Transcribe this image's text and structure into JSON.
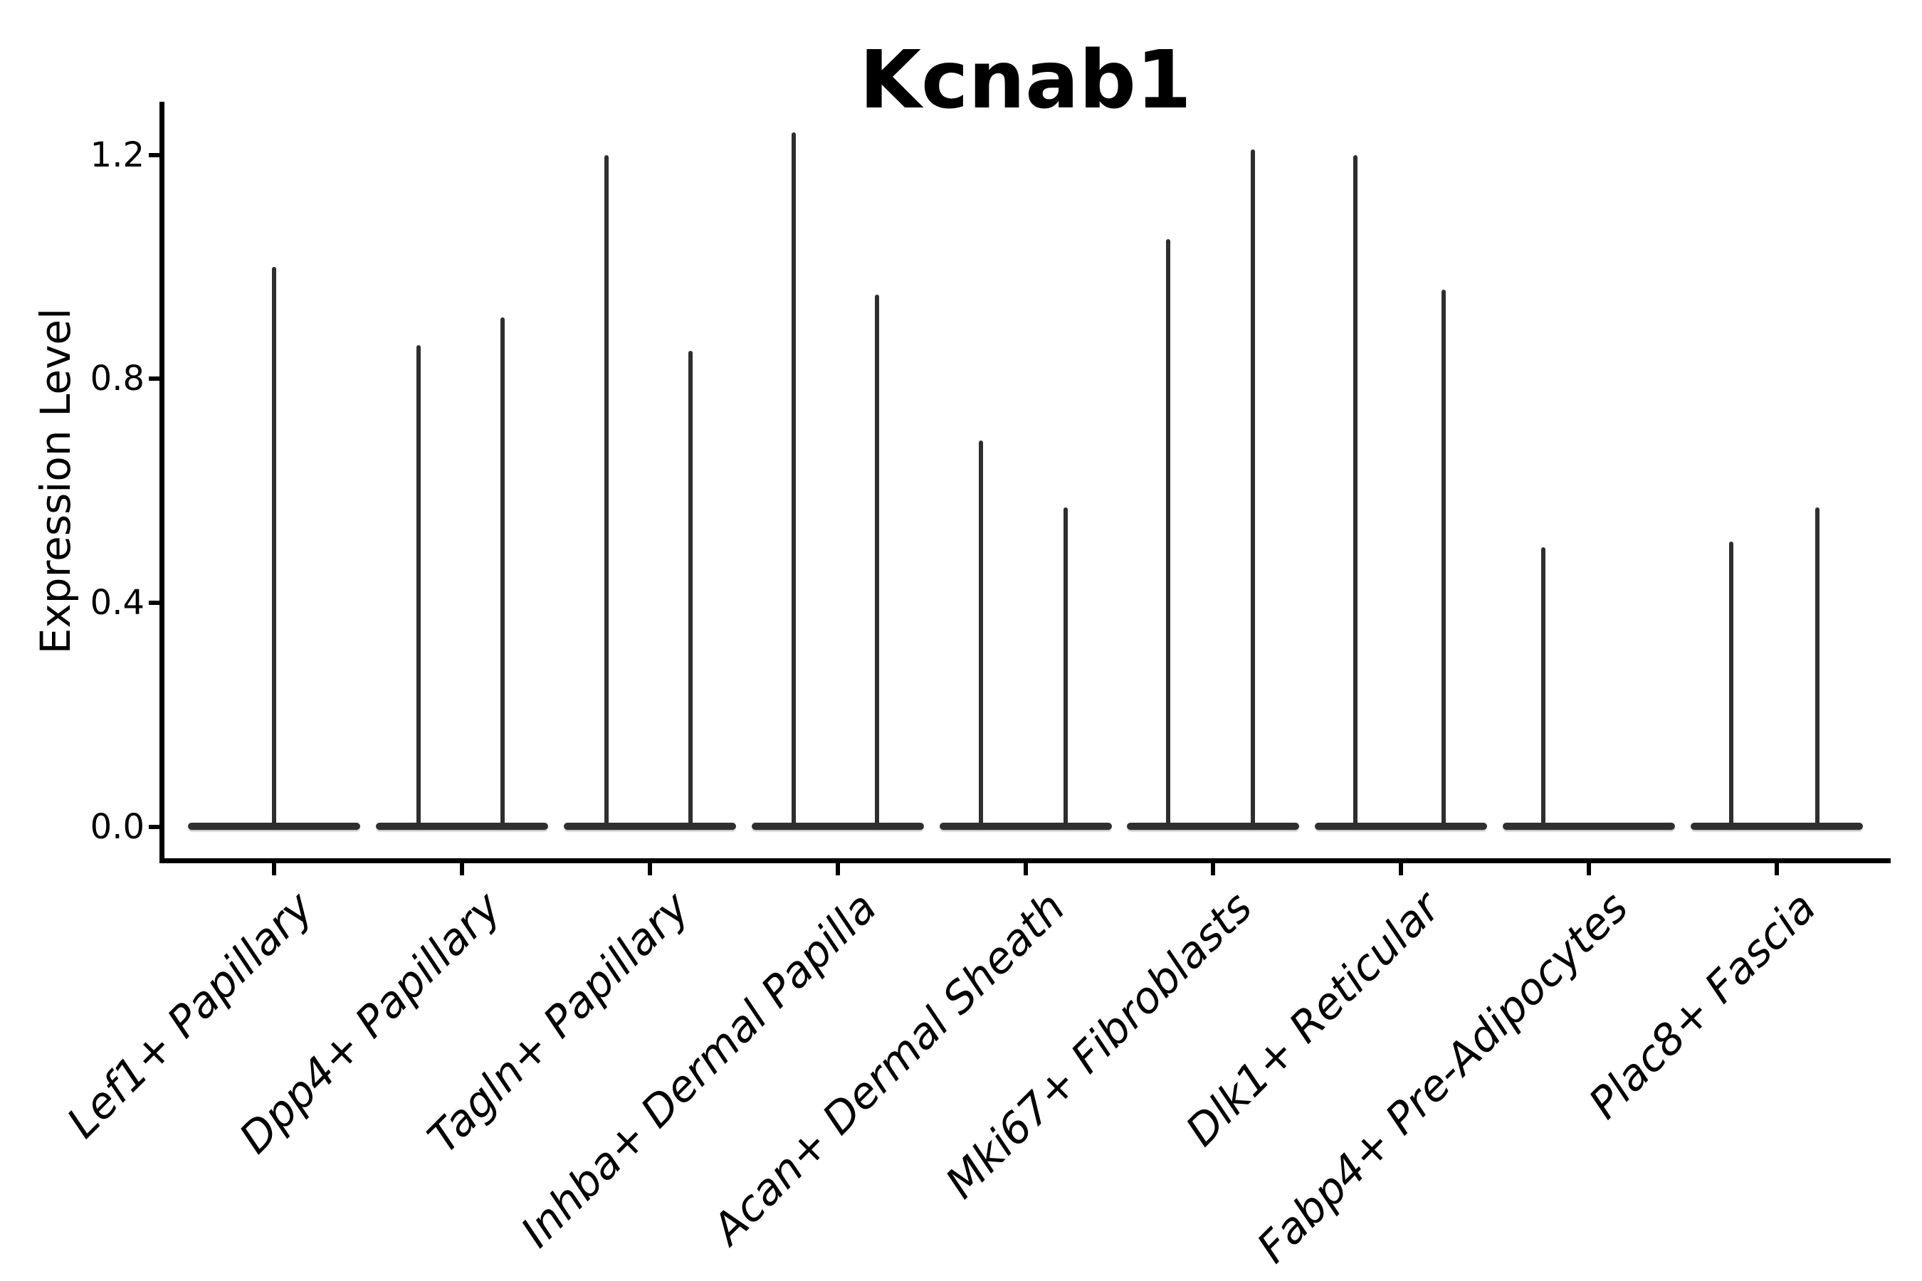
{
  "figure": {
    "title": "Kcnab1",
    "background": "#ffffff"
  },
  "colors": {
    "ink": "#000000",
    "violin_line": "#2e2e2e"
  },
  "chart_data": {
    "type": "violin",
    "title": "Kcnab1",
    "xlabel": "",
    "ylabel": "Expression Level",
    "ylim": [
      -0.06,
      1.3
    ],
    "grid": false,
    "legend": "none",
    "yticks": [
      {
        "value": 1.2,
        "label": "1.2"
      },
      {
        "value": 0.8,
        "label": "0.8"
      },
      {
        "value": 0.4,
        "label": "0.4"
      },
      {
        "value": 0.0,
        "label": "0.0"
      }
    ],
    "note": "Violin densities are collapsed into a wide flat body at expression 0 with hairline spikes rising to each group's maximum expression value",
    "categories": [
      {
        "label": "Lef1+ Papillary",
        "violins": [
          {
            "dx": 0,
            "max": 1.0
          }
        ]
      },
      {
        "label": "Dpp4+ Papillary",
        "violins": [
          {
            "dx": -61,
            "max": 0.86
          },
          {
            "dx": 57,
            "max": 0.91
          }
        ]
      },
      {
        "label": "Tagln+ Papillary",
        "violins": [
          {
            "dx": -61,
            "max": 1.2
          },
          {
            "dx": 57,
            "max": 0.85
          }
        ]
      },
      {
        "label": "Inhba+ Dermal Papilla",
        "violins": [
          {
            "dx": -62,
            "max": 1.24
          },
          {
            "dx": 55,
            "max": 0.95
          }
        ]
      },
      {
        "label": "Acan+ Dermal Sheath",
        "violins": [
          {
            "dx": -63,
            "max": 0.69
          },
          {
            "dx": 56,
            "max": 0.57
          }
        ]
      },
      {
        "label": "Mki67+ Fibroblasts",
        "violins": [
          {
            "dx": -63,
            "max": 1.05
          },
          {
            "dx": 56,
            "max": 1.21
          }
        ]
      },
      {
        "label": "Dlk1+ Reticular",
        "violins": [
          {
            "dx": -64,
            "max": 1.2
          },
          {
            "dx": 60,
            "max": 0.96
          }
        ]
      },
      {
        "label": "Fabp4+ Pre-Adipocytes",
        "violins": [
          {
            "dx": -64,
            "max": 0.5
          }
        ]
      },
      {
        "label": "Plac8+ Fascia",
        "violins": [
          {
            "dx": -64,
            "max": 0.51
          },
          {
            "dx": 57,
            "max": 0.57
          }
        ]
      }
    ]
  }
}
